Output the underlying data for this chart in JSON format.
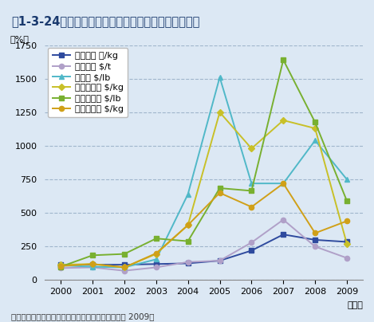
{
  "title": "図1-3-24　レアメタルの国際価格の推移（実勢価格）",
  "source": "出典：日本メタル経済研究所「クリティカルメタル 2009」",
  "ylabel": "（%）",
  "xlabel": "（年）",
  "years": [
    2000,
    2001,
    2002,
    2003,
    2004,
    2005,
    2006,
    2007,
    2008,
    2009
  ],
  "ylim": [
    0,
    1750
  ],
  "yticks": [
    0,
    250,
    500,
    750,
    1000,
    1250,
    1500,
    1750
  ],
  "series": [
    {
      "label": "リチウム 円/kg",
      "color": "#2e4a9e",
      "marker": "s",
      "values": [
        115,
        115,
        115,
        120,
        125,
        145,
        220,
        340,
        300,
        285
      ]
    },
    {
      "label": "ニッケル $/t",
      "color": "#b0a0c8",
      "marker": "o",
      "values": [
        90,
        95,
        70,
        95,
        135,
        145,
        280,
        450,
        250,
        165
      ]
    },
    {
      "label": "セレン $/lb",
      "color": "#50b8c8",
      "marker": "^",
      "values": [
        110,
        100,
        95,
        155,
        640,
        1510,
        720,
        720,
        1040,
        750
      ]
    },
    {
      "label": "モリブデン $/kg",
      "color": "#c8c028",
      "marker": "D",
      "values": [
        115,
        120,
        95,
        195,
        410,
        1250,
        980,
        1190,
        1130,
        270
      ]
    },
    {
      "label": "カドミウム $/lb",
      "color": "#78b030",
      "marker": "s",
      "values": [
        100,
        185,
        195,
        310,
        290,
        685,
        665,
        1640,
        1175,
        590
      ]
    },
    {
      "label": "インジウム $/kg",
      "color": "#d0a018",
      "marker": "o",
      "values": [
        105,
        120,
        95,
        200,
        410,
        650,
        545,
        720,
        350,
        440
      ]
    }
  ],
  "background_color": "#dce8f4",
  "plot_bg_color": "#dce8f4",
  "title_bg_color": "#c8d8ec",
  "grid_color": "#9ab0c8",
  "title_fontsize": 10.5,
  "label_fontsize": 8,
  "legend_fontsize": 8,
  "tick_fontsize": 8,
  "title_color": "#1a3a6e",
  "source_fontsize": 7.5
}
